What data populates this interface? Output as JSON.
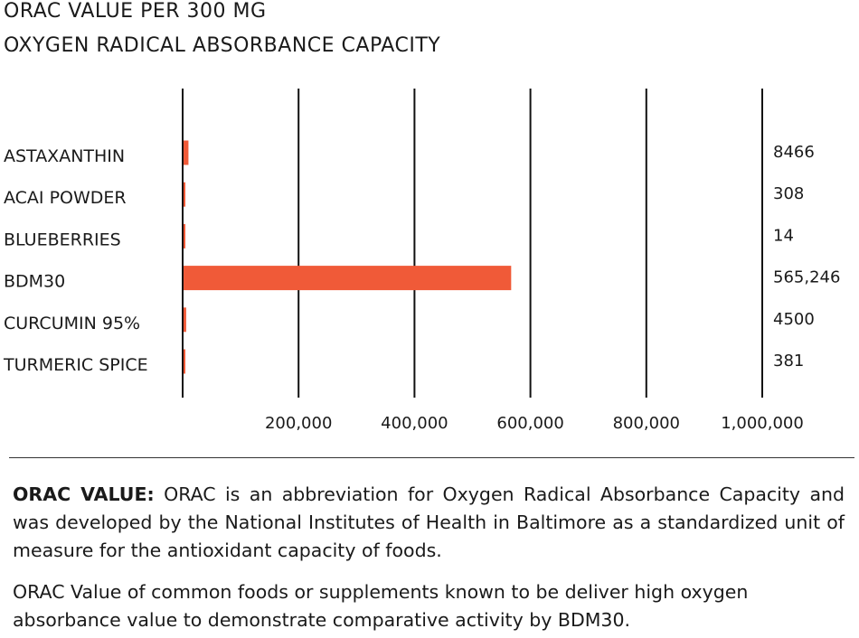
{
  "chart_data": {
    "type": "bar",
    "orientation": "horizontal",
    "title": "ORAC VALUE PER 300 MG",
    "subtitle": "OXYGEN RADICAL ABSORBANCE CAPACITY",
    "categories": [
      "ASTAXANTHIN",
      "ACAI POWDER",
      "BLUEBERRIES",
      "BDM30",
      "CURCUMIN 95%",
      "TURMERIC SPICE"
    ],
    "values": [
      8466,
      308,
      14,
      565246,
      4500,
      381
    ],
    "value_labels": [
      "8466",
      "308",
      "14",
      "565,246",
      "4500",
      "381"
    ],
    "xlim": [
      0,
      1000000
    ],
    "ticks": [
      200000,
      400000,
      600000,
      800000,
      1000000
    ],
    "tick_labels": [
      "200,000",
      "400,000",
      "600,000",
      "800,000",
      "1,000,000"
    ],
    "grid": true,
    "bar_color": "#f05a38",
    "xlabel": "",
    "ylabel": ""
  },
  "footer": {
    "p1_bold": "ORAC VALUE:",
    "p1_text": " ORAC is an abbreviation for Oxygen Radical Absorbance Capacity and was developed by the National Institutes of Health in Baltimore as a standardized unit of measure for the antioxidant capacity of foods.",
    "p2_text": "ORAC Value of common foods or supplements known to be deliver high oxygen absorbance value to demonstrate comparative activity by BDM30."
  }
}
